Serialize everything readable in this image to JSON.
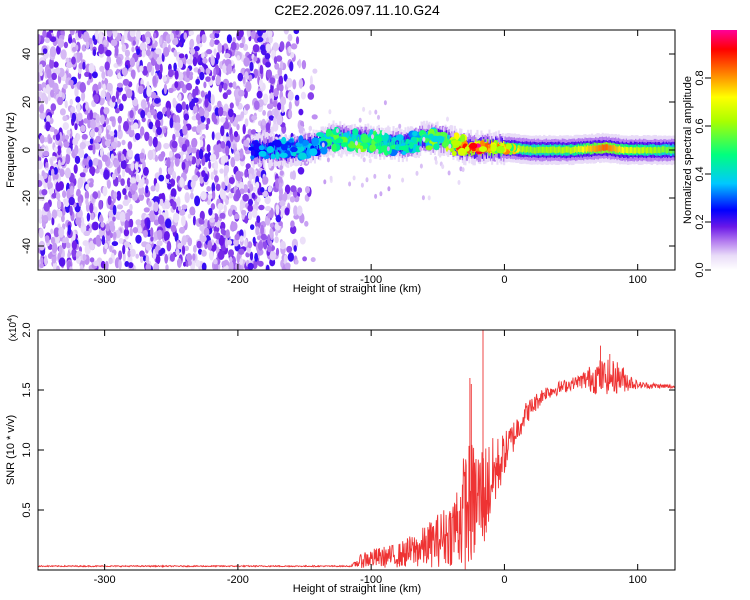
{
  "title": "C2E2.2026.097.11.10.G24",
  "chart_data": [
    {
      "type": "heatmap",
      "xlabel": "Height of straight line (km)",
      "ylabel": "Frequency (Hz)",
      "xlim": [
        -350,
        128
      ],
      "ylim": [
        -50,
        50
      ],
      "xticks": [
        -300,
        -200,
        -100,
        0,
        100
      ],
      "yticks": [
        -40,
        -20,
        0,
        20,
        40
      ],
      "noise_region": {
        "x_from": -350,
        "x_to": -140,
        "freq_range": [
          -50,
          50
        ],
        "amplitude_range": [
          0.1,
          0.3
        ]
      },
      "signal_track": [
        {
          "x": -190,
          "freq": 0,
          "amplitude": 0.3
        },
        {
          "x": -160,
          "freq": 0,
          "amplitude": 0.35
        },
        {
          "x": -140,
          "freq": 2,
          "amplitude": 0.35
        },
        {
          "x": -130,
          "freq": 5,
          "amplitude": 0.5
        },
        {
          "x": -110,
          "freq": 4,
          "amplitude": 0.5
        },
        {
          "x": -90,
          "freq": 3,
          "amplitude": 0.45
        },
        {
          "x": -75,
          "freq": 2,
          "amplitude": 0.4
        },
        {
          "x": -60,
          "freq": 5,
          "amplitude": 0.5
        },
        {
          "x": -45,
          "freq": 4,
          "amplitude": 0.55
        },
        {
          "x": -30,
          "freq": 1,
          "amplitude": 0.85
        },
        {
          "x": -20,
          "freq": 1,
          "amplitude": 0.9
        },
        {
          "x": -10,
          "freq": 1,
          "amplitude": 0.8
        },
        {
          "x": 0,
          "freq": 1,
          "amplitude": 0.7
        },
        {
          "x": 20,
          "freq": 0,
          "amplitude": 0.6
        },
        {
          "x": 50,
          "freq": 0,
          "amplitude": 0.65
        },
        {
          "x": 75,
          "freq": 1,
          "amplitude": 0.85
        },
        {
          "x": 90,
          "freq": 0,
          "amplitude": 0.7
        },
        {
          "x": 128,
          "freq": 0,
          "amplitude": 0.55
        }
      ],
      "colorbar": {
        "label": "Normalized spectral amplitude",
        "range": [
          0,
          1
        ],
        "ticks": [
          0.0,
          0.2,
          0.4,
          0.6,
          0.8
        ],
        "tick_labels": [
          "0.0",
          "0.2",
          "0.4",
          "0.6",
          "0.8"
        ]
      },
      "colors": [
        "#ffffff",
        "#d9c2f4",
        "#7a22e8",
        "#0000ff",
        "#00c8ff",
        "#00ff7f",
        "#a6ff00",
        "#ffff00",
        "#ff8000",
        "#ff0000",
        "#ff00aa"
      ]
    },
    {
      "type": "line",
      "xlabel": "Height of straight line (km)",
      "ylabel": "SNR (10 * v/v)",
      "yscale_label": "(x10",
      "yscale_exp": "4",
      "yscale_close": ")",
      "xlim": [
        -350,
        128
      ],
      "ylim": [
        0,
        2.0
      ],
      "xticks": [
        -300,
        -200,
        -100,
        0,
        100
      ],
      "yticks": [
        0.5,
        1.0,
        1.5,
        2.0
      ],
      "ytick_labels": [
        "0.5",
        "1.0",
        "1.5",
        "2.0"
      ],
      "series": [
        {
          "name": "SNR",
          "color": "#ee3333",
          "envelope": [
            {
              "x": -350,
              "base": 0.03,
              "spread": 0.01
            },
            {
              "x": -115,
              "base": 0.03,
              "spread": 0.01
            },
            {
              "x": -105,
              "base": 0.06,
              "spread": 0.15
            },
            {
              "x": -80,
              "base": 0.08,
              "spread": 0.2
            },
            {
              "x": -60,
              "base": 0.12,
              "spread": 0.35
            },
            {
              "x": -40,
              "base": 0.2,
              "spread": 0.55
            },
            {
              "x": -28,
              "base": 0.3,
              "spread": 1.1
            },
            {
              "x": -15,
              "base": 0.45,
              "spread": 0.9
            },
            {
              "x": 0,
              "base": 0.9,
              "spread": 0.35
            },
            {
              "x": 15,
              "base": 1.25,
              "spread": 0.2
            },
            {
              "x": 30,
              "base": 1.45,
              "spread": 0.12
            },
            {
              "x": 55,
              "base": 1.55,
              "spread": 0.1
            },
            {
              "x": 70,
              "base": 1.55,
              "spread": 0.3
            },
            {
              "x": 85,
              "base": 1.55,
              "spread": 0.28
            },
            {
              "x": 100,
              "base": 1.53,
              "spread": 0.06
            },
            {
              "x": 128,
              "base": 1.52,
              "spread": 0.03
            }
          ],
          "peaks": [
            {
              "x": -16,
              "value": 2.0
            },
            {
              "x": -26,
              "value": 1.6
            },
            {
              "x": -25,
              "value": 1.55
            },
            {
              "x": 72,
              "value": 1.87
            },
            {
              "x": 79,
              "value": 1.8
            }
          ]
        }
      ]
    }
  ]
}
